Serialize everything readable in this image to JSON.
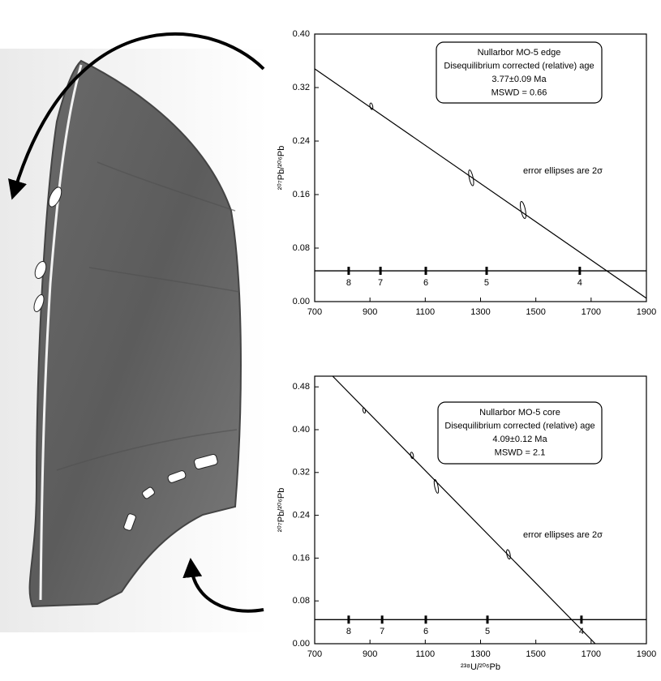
{
  "chart_data": [
    {
      "type": "scatter",
      "x": [
        905,
        1266,
        1454
      ],
      "values": [
        0.292,
        0.185,
        0.137
      ],
      "x_err": [
        5,
        7,
        8
      ],
      "y_err": [
        0.005,
        0.012,
        0.013
      ],
      "fit_line": {
        "x": [
          700,
          1900
        ],
        "y": [
          0.348,
          0.005
        ]
      },
      "concordia": {
        "y": 0.046,
        "x": [
          823,
          938,
          1102,
          1322,
          1659
        ],
        "ages": [
          8,
          7,
          6,
          5,
          4
        ]
      },
      "box_lines": [
        "Nullarbor MO-5 edge",
        "Disequilibrium corrected (relative) age",
        "3.77±0.09  Ma",
        "MSWD = 0.66"
      ],
      "note": "error ellipses are 2σ",
      "ylabel": "²⁰⁷Pb/²⁰⁶Pb",
      "xlim": [
        700,
        1900
      ],
      "xticks": [
        700,
        900,
        1100,
        1300,
        1500,
        1700,
        1900
      ],
      "ylim": [
        0,
        0.4
      ],
      "yticks": [
        {
          "value": 0,
          "label": "0.00"
        },
        0.08,
        0.16,
        0.24,
        0.32,
        {
          "value": 0.4,
          "label": "0.40"
        }
      ]
    },
    {
      "type": "scatter",
      "x": [
        879,
        1052,
        1140,
        1401
      ],
      "values": [
        0.436,
        0.352,
        0.294,
        0.167
      ],
      "x_err": [
        4,
        5,
        6,
        6
      ],
      "y_err": [
        0.005,
        0.006,
        0.013,
        0.009
      ],
      "fit_line": {
        "x": [
          765,
          1715
        ],
        "y": [
          0.5,
          0
        ]
      },
      "concordia": {
        "y": 0.045,
        "x": [
          823,
          944,
          1102,
          1325,
          1665
        ],
        "ages": [
          8,
          7,
          6,
          5,
          4
        ]
      },
      "box_lines": [
        "Nullarbor MO-5 core",
        "Disequilibrium corrected (relative) age",
        "4.09±0.12  Ma",
        "MSWD = 2.1"
      ],
      "note": "error ellipses are 2σ",
      "ylabel": "²⁰⁷Pb/²⁰⁶Pb",
      "xlabel": "²³⁸U/²⁰⁶Pb",
      "xlim": [
        700,
        1900
      ],
      "xticks": [
        700,
        900,
        1100,
        1300,
        1500,
        1700,
        1900
      ],
      "ylim": [
        0,
        0.5
      ],
      "yticks": [
        {
          "value": 0,
          "label": "0.00"
        },
        0.08,
        0.16,
        0.24,
        0.32,
        {
          "value": 0.4,
          "label": "0.40"
        },
        0.48
      ]
    }
  ]
}
